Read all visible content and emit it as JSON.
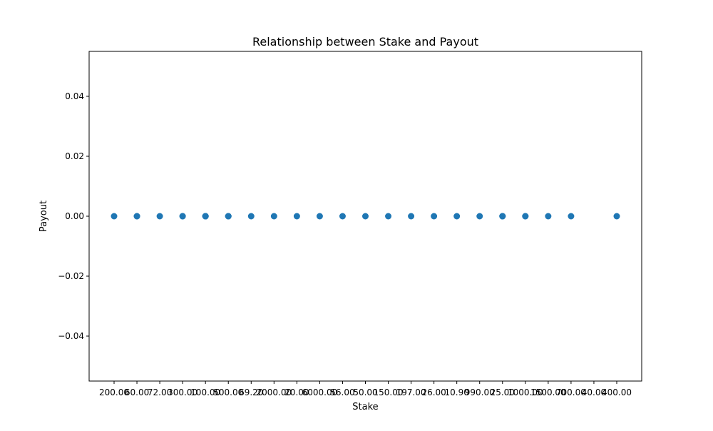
{
  "chart_data": {
    "type": "scatter",
    "title": "Relationship between Stake and Payout",
    "xlabel": "Stake",
    "ylabel": "Payout",
    "categories": [
      "200.00",
      "60.00",
      "72.00",
      "300.00",
      "100.00",
      "500.00",
      "69.20",
      "2000.00",
      "20.00",
      "6000.00",
      "56.00",
      "50.00",
      "150.00",
      "197.00",
      "26.00",
      "10.90",
      "990.00",
      "25.00",
      "1000.00",
      "1500.00",
      "700.00",
      "40.00",
      "400.00"
    ],
    "x_tick_labels": [
      "200.00",
      "60.00",
      "72.00",
      "300.00",
      "100.00",
      "500.00",
      "69.20",
      "2000.00",
      "20.00",
      "6000.00",
      "56.00",
      "50.00",
      "150.00",
      "197.00",
      "26.00",
      "10.90",
      "990.00",
      "25.00",
      "1000.00",
      "1500.00",
      "700.00",
      "40.00",
      "400.00"
    ],
    "points": [
      {
        "x": "200.00",
        "y": 0
      },
      {
        "x": "60.00",
        "y": 0
      },
      {
        "x": "60.00",
        "y": 0
      },
      {
        "x": "72.00",
        "y": 0
      },
      {
        "x": "300.00",
        "y": 0
      },
      {
        "x": "300.00",
        "y": 0
      },
      {
        "x": "100.00",
        "y": 0
      },
      {
        "x": "100.00",
        "y": 0
      },
      {
        "x": "100.00",
        "y": 0
      },
      {
        "x": "100.00",
        "y": 0
      },
      {
        "x": "500.00",
        "y": 0
      },
      {
        "x": "500.00",
        "y": 0
      },
      {
        "x": "500.00",
        "y": 0
      },
      {
        "x": "69.20",
        "y": 0
      },
      {
        "x": "2000.00",
        "y": 0
      },
      {
        "x": "20.00",
        "y": 0
      },
      {
        "x": "6000.00",
        "y": 0
      },
      {
        "x": "56.00",
        "y": 0
      },
      {
        "x": "50.00",
        "y": 0
      },
      {
        "x": "150.00",
        "y": 0
      },
      {
        "x": "197.00",
        "y": 0
      },
      {
        "x": "26.00",
        "y": 0
      },
      {
        "x": "10.90",
        "y": 0
      },
      {
        "x": "990.00",
        "y": 0
      },
      {
        "x": "25.00",
        "y": 0
      },
      {
        "x": "25.00",
        "y": 0
      },
      {
        "x": "25.00",
        "y": 0
      },
      {
        "x": "1000.00",
        "y": 0
      },
      {
        "x": "1000.00",
        "y": 0
      },
      {
        "x": "1500.00",
        "y": 0
      },
      {
        "x": "700.00",
        "y": 0
      },
      {
        "x": "400.00",
        "y": 0
      }
    ],
    "y_ticks": [
      -0.04,
      -0.02,
      0.0,
      0.02,
      0.04
    ],
    "y_tick_labels": [
      "−0.04",
      "−0.02",
      "0.00",
      "0.02",
      "0.04"
    ],
    "ylim": [
      -0.055,
      0.055
    ],
    "grid": false,
    "marker_color": "#1f77b4"
  }
}
